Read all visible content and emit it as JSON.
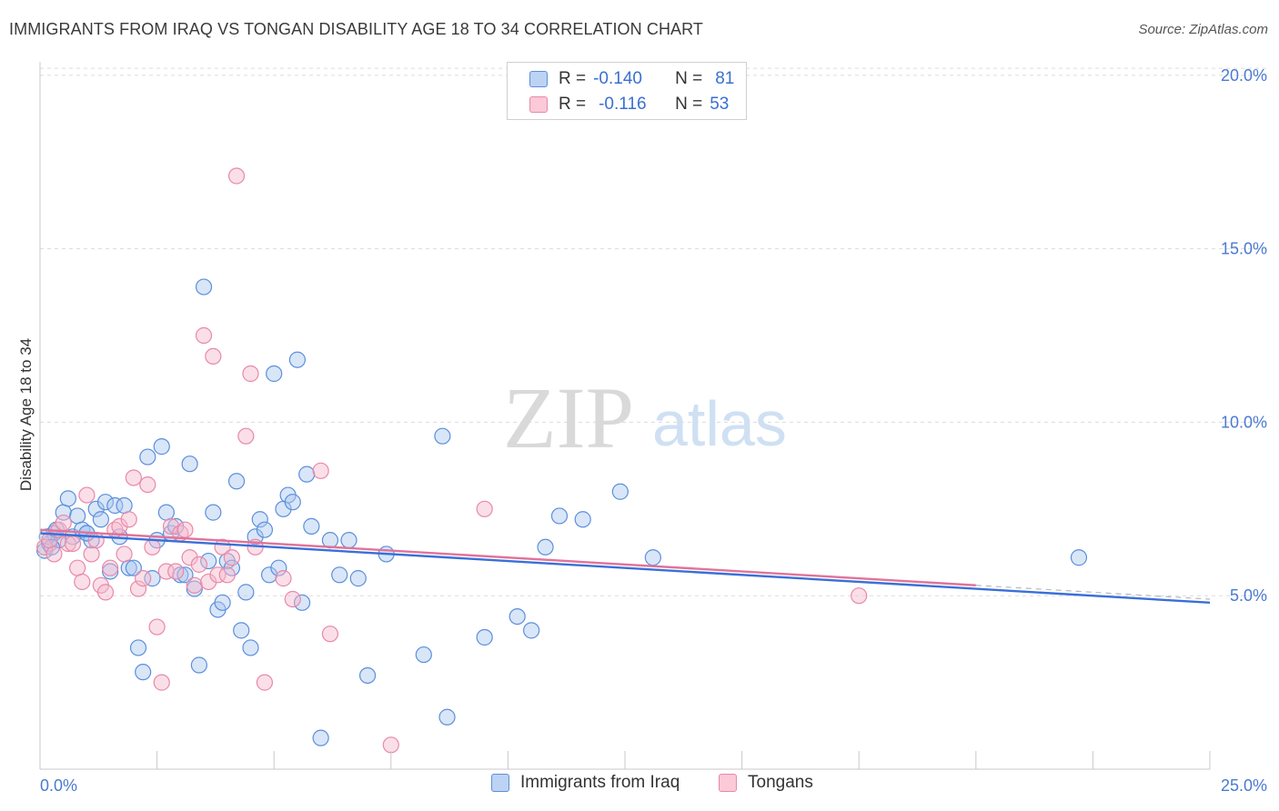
{
  "title": "IMMIGRANTS FROM IRAQ VS TONGAN DISABILITY AGE 18 TO 34 CORRELATION CHART",
  "source": "Source: ZipAtlas.com",
  "watermark": {
    "zip": "ZIP",
    "atlas": "atlas"
  },
  "colors": {
    "blue_fill": "#aac8f0",
    "blue_stroke": "#5b8fdc",
    "blue_line": "#3a6fd8",
    "pink_fill": "#f7b8cc",
    "pink_stroke": "#e889a8",
    "pink_line": "#e07399",
    "tick_text": "#4a7ad0",
    "grid": "#dcdcdc"
  },
  "legend": {
    "rows": [
      {
        "r_label": "R =",
        "r_value": "-0.140",
        "n_label": "N =",
        "n_value": "81",
        "swatch": "blue"
      },
      {
        "r_label": "R =",
        "r_value": "-0.116",
        "n_label": "N =",
        "n_value": "53",
        "swatch": "pink"
      }
    ]
  },
  "bottom_legend": [
    {
      "label": "Immigrants from Iraq",
      "swatch": "blue"
    },
    {
      "label": "Tongans",
      "swatch": "pink"
    }
  ],
  "chart_data": {
    "type": "scatter",
    "title": "IMMIGRANTS FROM IRAQ VS TONGAN DISABILITY AGE 18 TO 34 CORRELATION CHART",
    "xlabel": "",
    "ylabel": "Disability Age 18 to 34",
    "xlim": [
      0,
      25
    ],
    "ylim": [
      0,
      20.5
    ],
    "x_tick_labels": [
      "0.0%",
      "25.0%"
    ],
    "y_ticks": [
      5,
      10,
      15,
      20
    ],
    "y_tick_labels": [
      "5.0%",
      "10.0%",
      "15.0%",
      "20.0%"
    ],
    "grid": true,
    "series": [
      {
        "name": "Immigrants from Iraq",
        "color": "blue",
        "r": -0.14,
        "n": 81,
        "trend": {
          "x": [
            0,
            25
          ],
          "y": [
            6.8,
            4.8
          ]
        },
        "points": [
          [
            0.1,
            6.3
          ],
          [
            0.2,
            6.5
          ],
          [
            0.3,
            6.8
          ],
          [
            0.4,
            6.6
          ],
          [
            0.5,
            7.4
          ],
          [
            0.6,
            7.8
          ],
          [
            0.7,
            6.7
          ],
          [
            0.8,
            7.3
          ],
          [
            0.9,
            6.9
          ],
          [
            1.0,
            6.8
          ],
          [
            1.1,
            6.6
          ],
          [
            1.2,
            7.5
          ],
          [
            1.3,
            7.2
          ],
          [
            1.4,
            7.7
          ],
          [
            1.5,
            5.7
          ],
          [
            1.6,
            7.6
          ],
          [
            1.7,
            6.7
          ],
          [
            1.8,
            7.6
          ],
          [
            1.9,
            5.8
          ],
          [
            2.0,
            5.8
          ],
          [
            2.1,
            3.5
          ],
          [
            2.2,
            2.8
          ],
          [
            2.3,
            9.0
          ],
          [
            2.4,
            5.5
          ],
          [
            2.5,
            6.6
          ],
          [
            2.6,
            9.3
          ],
          [
            2.7,
            7.4
          ],
          [
            2.8,
            6.8
          ],
          [
            2.9,
            7.0
          ],
          [
            3.0,
            5.6
          ],
          [
            3.1,
            5.6
          ],
          [
            3.2,
            8.8
          ],
          [
            3.3,
            5.2
          ],
          [
            3.4,
            3.0
          ],
          [
            3.5,
            13.9
          ],
          [
            3.6,
            6.0
          ],
          [
            3.7,
            7.4
          ],
          [
            3.8,
            4.6
          ],
          [
            3.9,
            4.8
          ],
          [
            4.0,
            6.0
          ],
          [
            4.1,
            5.8
          ],
          [
            4.2,
            8.3
          ],
          [
            4.3,
            4.0
          ],
          [
            4.4,
            5.1
          ],
          [
            4.5,
            3.5
          ],
          [
            4.6,
            6.7
          ],
          [
            4.7,
            7.2
          ],
          [
            4.8,
            6.9
          ],
          [
            4.9,
            5.6
          ],
          [
            5.0,
            11.4
          ],
          [
            5.1,
            5.8
          ],
          [
            5.2,
            7.5
          ],
          [
            5.3,
            7.9
          ],
          [
            5.4,
            7.7
          ],
          [
            5.5,
            11.8
          ],
          [
            5.6,
            4.8
          ],
          [
            5.7,
            8.5
          ],
          [
            5.8,
            7.0
          ],
          [
            6.0,
            0.9
          ],
          [
            6.2,
            6.6
          ],
          [
            6.4,
            5.6
          ],
          [
            6.6,
            6.6
          ],
          [
            6.8,
            5.5
          ],
          [
            7.0,
            2.7
          ],
          [
            7.4,
            6.2
          ],
          [
            8.2,
            3.3
          ],
          [
            8.6,
            9.6
          ],
          [
            8.7,
            1.5
          ],
          [
            9.5,
            3.8
          ],
          [
            10.2,
            4.4
          ],
          [
            10.5,
            4.0
          ],
          [
            10.8,
            6.4
          ],
          [
            11.1,
            7.3
          ],
          [
            11.6,
            7.2
          ],
          [
            12.4,
            8.0
          ],
          [
            13.1,
            6.1
          ],
          [
            22.2,
            6.1
          ],
          [
            0.15,
            6.7
          ],
          [
            0.35,
            6.9
          ],
          [
            1.0,
            6.8
          ],
          [
            0.25,
            6.4
          ]
        ]
      },
      {
        "name": "Tongans",
        "color": "pink",
        "r": -0.116,
        "n": 53,
        "trend": {
          "x": [
            0,
            20
          ],
          "y": [
            6.9,
            5.3
          ]
        },
        "points": [
          [
            0.1,
            6.4
          ],
          [
            0.2,
            6.6
          ],
          [
            0.3,
            6.2
          ],
          [
            0.4,
            6.9
          ],
          [
            0.5,
            7.1
          ],
          [
            0.6,
            6.5
          ],
          [
            0.7,
            6.5
          ],
          [
            0.8,
            5.8
          ],
          [
            0.9,
            5.4
          ],
          [
            1.0,
            7.9
          ],
          [
            1.1,
            6.2
          ],
          [
            1.2,
            6.6
          ],
          [
            1.3,
            5.3
          ],
          [
            1.4,
            5.1
          ],
          [
            1.5,
            5.8
          ],
          [
            1.6,
            6.9
          ],
          [
            1.7,
            7.0
          ],
          [
            1.8,
            6.2
          ],
          [
            1.9,
            7.2
          ],
          [
            2.0,
            8.4
          ],
          [
            2.1,
            5.2
          ],
          [
            2.2,
            5.5
          ],
          [
            2.3,
            8.2
          ],
          [
            2.4,
            6.4
          ],
          [
            2.5,
            4.1
          ],
          [
            2.6,
            2.5
          ],
          [
            2.7,
            5.7
          ],
          [
            2.8,
            7.0
          ],
          [
            2.9,
            5.7
          ],
          [
            3.0,
            6.8
          ],
          [
            3.1,
            6.9
          ],
          [
            3.2,
            6.1
          ],
          [
            3.3,
            5.3
          ],
          [
            3.4,
            5.9
          ],
          [
            3.5,
            12.5
          ],
          [
            3.6,
            5.4
          ],
          [
            3.7,
            11.9
          ],
          [
            3.8,
            5.6
          ],
          [
            3.9,
            6.4
          ],
          [
            4.0,
            5.6
          ],
          [
            4.1,
            6.1
          ],
          [
            4.2,
            17.1
          ],
          [
            4.4,
            9.6
          ],
          [
            4.5,
            11.4
          ],
          [
            4.6,
            6.4
          ],
          [
            4.8,
            2.5
          ],
          [
            5.2,
            5.5
          ],
          [
            5.4,
            4.9
          ],
          [
            6.0,
            8.6
          ],
          [
            6.2,
            3.9
          ],
          [
            7.5,
            0.7
          ],
          [
            9.5,
            7.5
          ],
          [
            17.5,
            5.0
          ]
        ]
      }
    ]
  }
}
